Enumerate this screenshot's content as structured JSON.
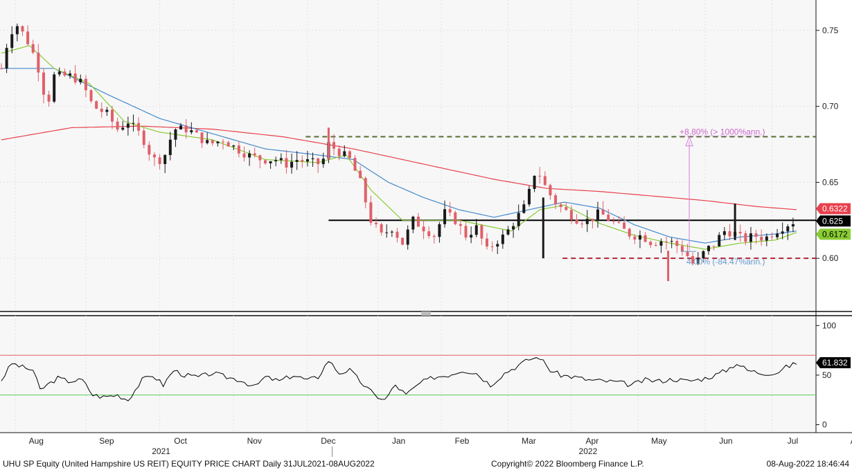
{
  "chart_data": [
    {
      "type": "candlestick",
      "security": "UHU SP Equity",
      "ylim": [
        0.565,
        0.77
      ],
      "y_ticks": [
        "0.75",
        "0.70",
        "0.65",
        "0.60"
      ],
      "x_months": [
        "Aug",
        "Sep",
        "Oct",
        "Nov",
        "Dec",
        "Jan",
        "Feb",
        "Mar",
        "Apr",
        "May",
        "Jun",
        "Jul",
        "Aug"
      ],
      "x_years": [
        "2021",
        "2022"
      ],
      "grid": true,
      "colors": {
        "up": "#1a1a1a",
        "down": "#e06068",
        "ma_short": "#88cc33",
        "ma_mid": "#4488cc",
        "ma_long": "#e8404c",
        "resistance": "#556b2f",
        "support": "#b22234",
        "current": "#000000"
      },
      "moving_averages": [
        {
          "color": "#e8404c",
          "last": "0.6322"
        },
        {
          "color": "#88cc33",
          "last": "0.6172"
        }
      ],
      "price_levels": {
        "current": "0.625",
        "resistance": 0.68,
        "support": 0.6
      },
      "annotations": {
        "up_move": "+8.80% (> 1000%ann.)",
        "down_move": "4.00% (-84.47%ann.)"
      },
      "price_keypoints": [
        [
          0,
          0.725
        ],
        [
          4,
          0.745
        ],
        [
          8,
          0.755
        ],
        [
          14,
          0.745
        ],
        [
          20,
          0.73
        ],
        [
          26,
          0.7
        ],
        [
          30,
          0.72
        ],
        [
          40,
          0.72
        ],
        [
          46,
          0.715
        ],
        [
          52,
          0.7
        ],
        [
          60,
          0.695
        ],
        [
          66,
          0.685
        ],
        [
          72,
          0.69
        ],
        [
          80,
          0.68
        ],
        [
          86,
          0.665
        ],
        [
          92,
          0.665
        ],
        [
          98,
          0.685
        ],
        [
          106,
          0.685
        ],
        [
          112,
          0.68
        ],
        [
          118,
          0.675
        ],
        [
          126,
          0.678
        ],
        [
          134,
          0.672
        ],
        [
          140,
          0.668
        ],
        [
          148,
          0.665
        ],
        [
          156,
          0.665
        ],
        [
          162,
          0.662
        ],
        [
          168,
          0.665
        ],
        [
          176,
          0.663
        ],
        [
          182,
          0.662
        ],
        [
          186,
          0.675
        ],
        [
          192,
          0.67
        ],
        [
          198,
          0.665
        ],
        [
          204,
          0.65
        ],
        [
          210,
          0.625
        ],
        [
          216,
          0.615
        ],
        [
          222,
          0.62
        ],
        [
          228,
          0.61
        ],
        [
          234,
          0.625
        ],
        [
          240,
          0.62
        ],
        [
          246,
          0.615
        ],
        [
          252,
          0.63
        ],
        [
          258,
          0.625
        ],
        [
          264,
          0.615
        ],
        [
          270,
          0.62
        ],
        [
          276,
          0.605
        ],
        [
          280,
          0.61
        ],
        [
          286,
          0.615
        ],
        [
          292,
          0.625
        ],
        [
          298,
          0.635
        ],
        [
          304,
          0.66
        ],
        [
          310,
          0.645
        ],
        [
          316,
          0.635
        ],
        [
          322,
          0.63
        ],
        [
          328,
          0.625
        ],
        [
          334,
          0.625
        ],
        [
          340,
          0.63
        ],
        [
          346,
          0.625
        ],
        [
          352,
          0.62
        ],
        [
          358,
          0.615
        ],
        [
          364,
          0.615
        ],
        [
          370,
          0.61
        ],
        [
          376,
          0.612
        ],
        [
          382,
          0.61
        ],
        [
          388,
          0.605
        ],
        [
          394,
          0.595
        ],
        [
          400,
          0.605
        ],
        [
          406,
          0.61
        ],
        [
          410,
          0.618
        ],
        [
          416,
          0.617
        ],
        [
          422,
          0.612
        ],
        [
          428,
          0.615
        ],
        [
          434,
          0.613
        ],
        [
          440,
          0.618
        ],
        [
          446,
          0.622
        ],
        [
          452,
          0.625
        ]
      ],
      "ma_mid_keypoints": [
        [
          0,
          0.725
        ],
        [
          30,
          0.725
        ],
        [
          60,
          0.708
        ],
        [
          90,
          0.692
        ],
        [
          120,
          0.682
        ],
        [
          150,
          0.672
        ],
        [
          180,
          0.668
        ],
        [
          200,
          0.665
        ],
        [
          220,
          0.65
        ],
        [
          240,
          0.64
        ],
        [
          260,
          0.632
        ],
        [
          280,
          0.627
        ],
        [
          300,
          0.632
        ],
        [
          320,
          0.637
        ],
        [
          340,
          0.633
        ],
        [
          360,
          0.622
        ],
        [
          380,
          0.614
        ],
        [
          400,
          0.61
        ],
        [
          420,
          0.614
        ],
        [
          440,
          0.616
        ],
        [
          452,
          0.618
        ]
      ],
      "ma_long_keypoints": [
        [
          0,
          0.678
        ],
        [
          40,
          0.686
        ],
        [
          80,
          0.687
        ],
        [
          120,
          0.685
        ],
        [
          160,
          0.68
        ],
        [
          200,
          0.672
        ],
        [
          240,
          0.662
        ],
        [
          280,
          0.652
        ],
        [
          310,
          0.646
        ],
        [
          340,
          0.644
        ],
        [
          370,
          0.641
        ],
        [
          400,
          0.638
        ],
        [
          430,
          0.634
        ],
        [
          452,
          0.632
        ]
      ],
      "ma_short_keypoints": [
        [
          0,
          0.735
        ],
        [
          16,
          0.74
        ],
        [
          30,
          0.725
        ],
        [
          50,
          0.715
        ],
        [
          70,
          0.69
        ],
        [
          90,
          0.683
        ],
        [
          120,
          0.678
        ],
        [
          150,
          0.665
        ],
        [
          180,
          0.663
        ],
        [
          196,
          0.668
        ],
        [
          210,
          0.645
        ],
        [
          228,
          0.625
        ],
        [
          260,
          0.625
        ],
        [
          290,
          0.618
        ],
        [
          306,
          0.632
        ],
        [
          320,
          0.635
        ],
        [
          340,
          0.623
        ],
        [
          360,
          0.615
        ],
        [
          380,
          0.61
        ],
        [
          400,
          0.606
        ],
        [
          420,
          0.61
        ],
        [
          440,
          0.612
        ],
        [
          452,
          0.617
        ]
      ]
    },
    {
      "type": "line",
      "indicator": "RSI",
      "ylim": [
        -8,
        110
      ],
      "y_ticks": [
        "100",
        "50",
        "0"
      ],
      "levels": {
        "overbought": 70,
        "oversold": 30
      },
      "last_value": "61.832",
      "colors": {
        "line": "#000000",
        "overbought": "#e06068",
        "oversold": "#55cc55"
      },
      "rsi_keypoints": [
        [
          0,
          45
        ],
        [
          6,
          62
        ],
        [
          12,
          58
        ],
        [
          18,
          55
        ],
        [
          22,
          35
        ],
        [
          26,
          40
        ],
        [
          32,
          47
        ],
        [
          38,
          44
        ],
        [
          46,
          45
        ],
        [
          52,
          30
        ],
        [
          58,
          28
        ],
        [
          66,
          30
        ],
        [
          72,
          25
        ],
        [
          80,
          45
        ],
        [
          86,
          50
        ],
        [
          92,
          40
        ],
        [
          98,
          55
        ],
        [
          104,
          50
        ],
        [
          112,
          48
        ],
        [
          120,
          52
        ],
        [
          128,
          48
        ],
        [
          136,
          45
        ],
        [
          144,
          38
        ],
        [
          150,
          48
        ],
        [
          158,
          44
        ],
        [
          166,
          50
        ],
        [
          174,
          45
        ],
        [
          180,
          48
        ],
        [
          186,
          65
        ],
        [
          192,
          52
        ],
        [
          198,
          55
        ],
        [
          206,
          40
        ],
        [
          212,
          30
        ],
        [
          218,
          25
        ],
        [
          224,
          40
        ],
        [
          230,
          30
        ],
        [
          238,
          42
        ],
        [
          246,
          48
        ],
        [
          254,
          50
        ],
        [
          262,
          55
        ],
        [
          270,
          52
        ],
        [
          278,
          40
        ],
        [
          286,
          52
        ],
        [
          294,
          60
        ],
        [
          300,
          66
        ],
        [
          306,
          68
        ],
        [
          312,
          55
        ],
        [
          318,
          50
        ],
        [
          326,
          48
        ],
        [
          334,
          45
        ],
        [
          342,
          44
        ],
        [
          350,
          43
        ],
        [
          358,
          40
        ],
        [
          366,
          45
        ],
        [
          374,
          44
        ],
        [
          382,
          46
        ],
        [
          390,
          44
        ],
        [
          398,
          46
        ],
        [
          406,
          50
        ],
        [
          412,
          55
        ],
        [
          418,
          62
        ],
        [
          424,
          55
        ],
        [
          432,
          52
        ],
        [
          440,
          52
        ],
        [
          446,
          58
        ],
        [
          452,
          62
        ]
      ]
    }
  ],
  "footer": {
    "left": "UHU SP Equity (United Hampshire US REIT) EQUITY PRICE CHART  Daily 31JUL2021-08AUG2022",
    "center": "Copyright© 2022 Bloomberg Finance L.P.",
    "right": "08-Aug-2022  18:46:44"
  }
}
